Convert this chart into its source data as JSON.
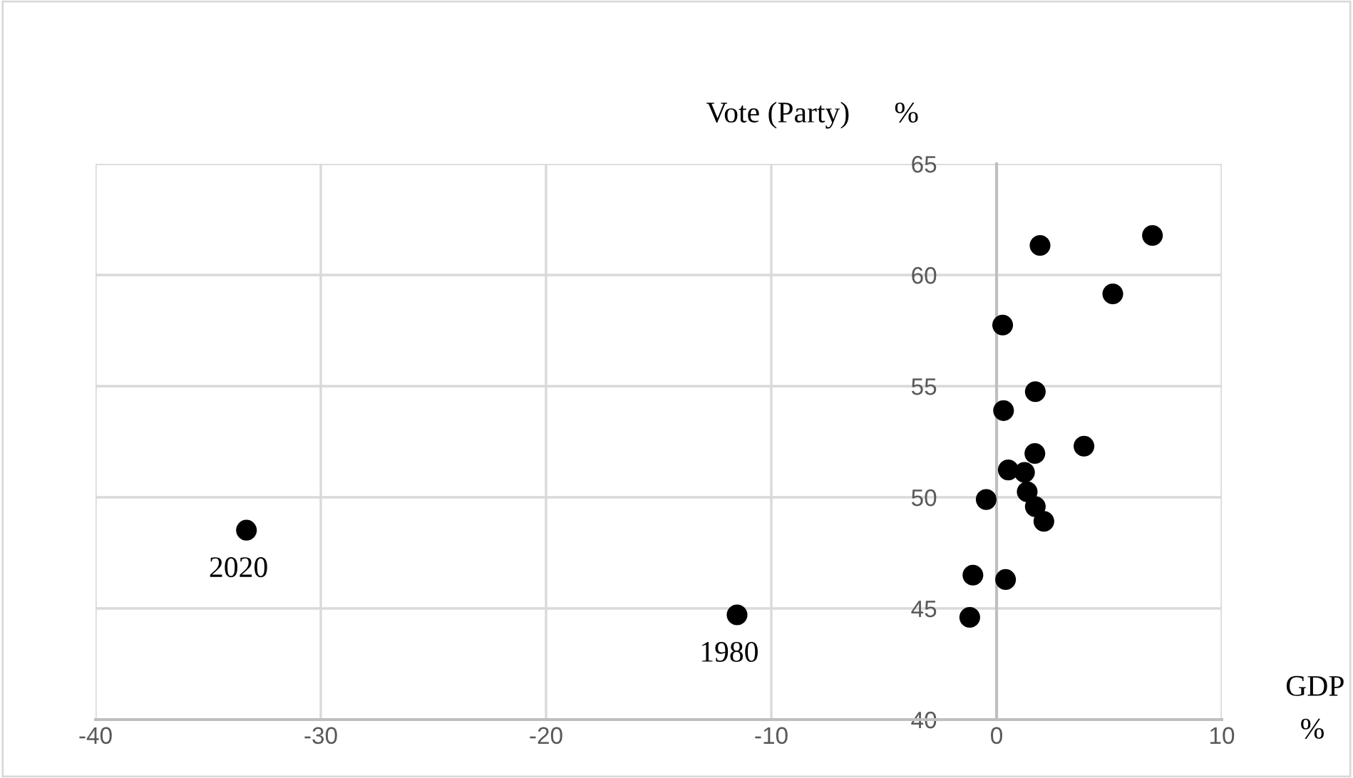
{
  "chart_data": {
    "type": "scatter",
    "xlabel": "GDP",
    "ylabel": "Vote (Party)",
    "x": [
      1.93,
      6.92,
      5.16,
      0.27,
      1.72,
      0.31,
      3.88,
      1.7,
      0.52,
      1.24,
      1.36,
      1.72,
      2.1,
      -0.46,
      -1.05,
      0.4,
      -1.19,
      -33.3,
      -11.52
    ],
    "series": [
      {
        "color": "#000000",
        "values": [
          61.33,
          61.78,
          59.15,
          57.75,
          54.75,
          53.9,
          52.3,
          51.97,
          51.23,
          51.12,
          50.25,
          49.58,
          48.92,
          49.9,
          46.5,
          46.3,
          44.6,
          48.52,
          44.71
        ]
      }
    ],
    "xlim": [
      -40,
      10
    ],
    "xticks": [
      -40,
      -30,
      -20,
      -10,
      0,
      10
    ],
    "ylim": [
      40,
      65
    ],
    "yticks": [
      40,
      45,
      50,
      55,
      60,
      65
    ],
    "grid": true,
    "marker": "circle",
    "annotations": [
      "%",
      "%",
      {
        "text": "2020",
        "x": -33.3,
        "y": 48.52
      },
      {
        "text": "1980",
        "x": -11.52,
        "y": 44.71
      }
    ]
  }
}
